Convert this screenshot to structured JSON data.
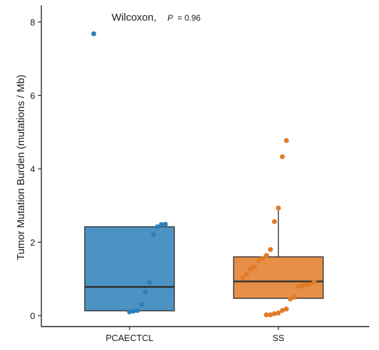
{
  "chart_data": {
    "type": "box",
    "ylabel": "Tumor Mutation Burden (mutations / Mb)",
    "ylim": [
      -0.3,
      8.45
    ],
    "yticks": [
      0,
      2,
      4,
      6,
      8
    ],
    "grid": false,
    "annotation": {
      "test": "Wilcoxon,",
      "p_label": "P",
      "p_value": "= 0.96"
    },
    "categories": [
      "PCAECTCL",
      "SS"
    ],
    "colors": {
      "PCAECTCL": "#2d7fb8",
      "SS": "#e07b28"
    },
    "boxes": [
      {
        "category": "PCAECTCL",
        "q1": 0.13,
        "median": 0.78,
        "q3": 2.42,
        "whisker_low": 0.13,
        "whisker_high": 2.42
      },
      {
        "category": "SS",
        "q1": 0.47,
        "median": 0.93,
        "q3": 1.6,
        "whisker_low": 0.47,
        "whisker_high": 2.9
      }
    ],
    "points": {
      "PCAECTCL": [
        7.68,
        2.49,
        2.48,
        2.42,
        2.21,
        0.9,
        0.64,
        0.3,
        0.14,
        0.12,
        0.1
      ],
      "SS": [
        4.77,
        4.33,
        2.93,
        2.56,
        1.8,
        1.64,
        1.56,
        1.5,
        1.33,
        1.27,
        1.12,
        1.02,
        0.92,
        0.85,
        0.84,
        0.82,
        0.79,
        0.5,
        0.45,
        0.18,
        0.14,
        0.07,
        0.05,
        0.02,
        0.02
      ]
    }
  }
}
